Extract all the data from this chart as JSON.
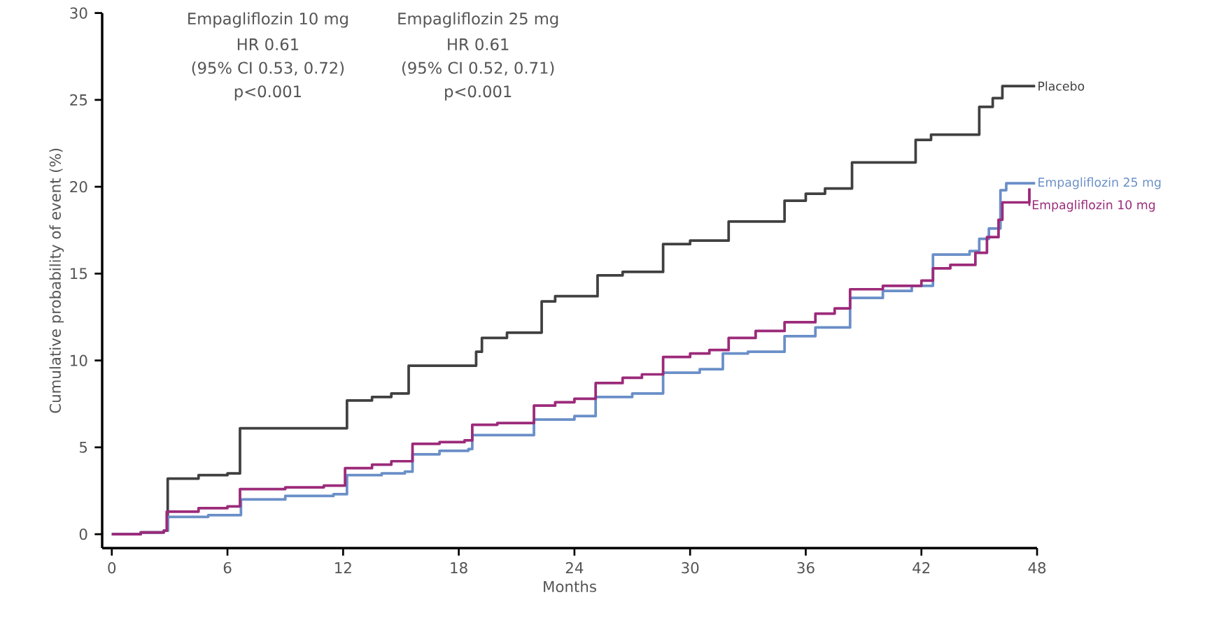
{
  "chart_data": {
    "type": "step",
    "xlabel": "Months",
    "ylabel": "Cumulative probability of event (%)",
    "annotations": [
      "Empagliflozin 10 mg",
      "HR 0.61",
      "(95% CI 0.53, 0.72)",
      "p<0.001",
      "Empagliflozin 25 mg",
      "HR 0.61",
      "(95% CI 0.52, 0.71)",
      "p<0.001"
    ],
    "xlim": [
      -0.5,
      48
    ],
    "ylim": [
      -0.8,
      30
    ],
    "xticks": [
      0,
      6,
      12,
      18,
      24,
      30,
      36,
      42,
      48
    ],
    "yticks": [
      0,
      5,
      10,
      15,
      20,
      25,
      30
    ],
    "series": [
      {
        "name": "Placebo",
        "color": "#404040",
        "x": [
          0,
          1.5,
          2.7,
          2.9,
          4.5,
          6.0,
          6.65,
          12.2,
          13.5,
          14.5,
          15.4,
          18.9,
          19.2,
          20.5,
          22.3,
          23,
          25.2,
          26.5,
          28.6,
          30,
          32,
          34.9,
          36,
          37,
          38.4,
          41.7,
          42.5,
          45,
          45.7,
          46.2,
          47.9
        ],
        "values": [
          0,
          0.1,
          0.2,
          3.2,
          3.4,
          3.5,
          6.1,
          7.7,
          7.9,
          8.1,
          9.7,
          10.5,
          11.3,
          11.6,
          13.4,
          13.7,
          14.9,
          15.1,
          16.7,
          16.9,
          18.0,
          19.2,
          19.6,
          19.9,
          21.4,
          22.7,
          23.0,
          24.6,
          25.1,
          25.8,
          25.8
        ]
      },
      {
        "name": "Empagliflozin 25 mg",
        "color": "#6a8fc8",
        "x": [
          0,
          1.5,
          2.7,
          2.9,
          5,
          6.7,
          9,
          11.5,
          12.2,
          14,
          15.2,
          15.6,
          17,
          18.5,
          18.7,
          21.9,
          24,
          25.1,
          27,
          28.6,
          30.5,
          31.7,
          33,
          34.9,
          36.5,
          38.3,
          40,
          41.5,
          42.6,
          44.5,
          45,
          45.5,
          46.1,
          46.4,
          47.9
        ],
        "values": [
          0,
          0.1,
          0.2,
          1.0,
          1.1,
          2.0,
          2.2,
          2.3,
          3.4,
          3.5,
          3.6,
          4.6,
          4.8,
          4.9,
          5.7,
          6.6,
          6.8,
          7.9,
          8.1,
          9.3,
          9.5,
          10.4,
          10.5,
          11.4,
          11.9,
          13.6,
          14.0,
          14.3,
          16.1,
          16.3,
          17.0,
          17.6,
          19.8,
          20.2,
          20.2
        ]
      },
      {
        "name": "Empagliflozin 10 mg",
        "color": "#9c2a7a",
        "x": [
          0,
          1.5,
          2.7,
          2.85,
          4.5,
          6,
          6.65,
          9,
          11,
          12.1,
          13.5,
          14.5,
          15.6,
          17,
          18.3,
          18.7,
          20,
          21.9,
          23,
          24,
          25.1,
          26.5,
          27.5,
          28.6,
          30,
          31,
          32,
          33.4,
          34.9,
          36.5,
          37.5,
          38.3,
          40,
          42,
          42.6,
          43.5,
          44.8,
          45.4,
          46.0,
          46.2,
          47.6
        ],
        "values": [
          0,
          0.1,
          0.2,
          1.3,
          1.5,
          1.6,
          2.6,
          2.7,
          2.8,
          3.8,
          4.0,
          4.2,
          5.2,
          5.3,
          5.4,
          6.3,
          6.4,
          7.4,
          7.6,
          7.8,
          8.7,
          9.0,
          9.2,
          10.2,
          10.4,
          10.6,
          11.3,
          11.7,
          12.2,
          12.7,
          13.0,
          14.1,
          14.3,
          14.6,
          15.3,
          15.5,
          16.2,
          17.1,
          18.1,
          19.1,
          19.9
        ]
      }
    ]
  }
}
